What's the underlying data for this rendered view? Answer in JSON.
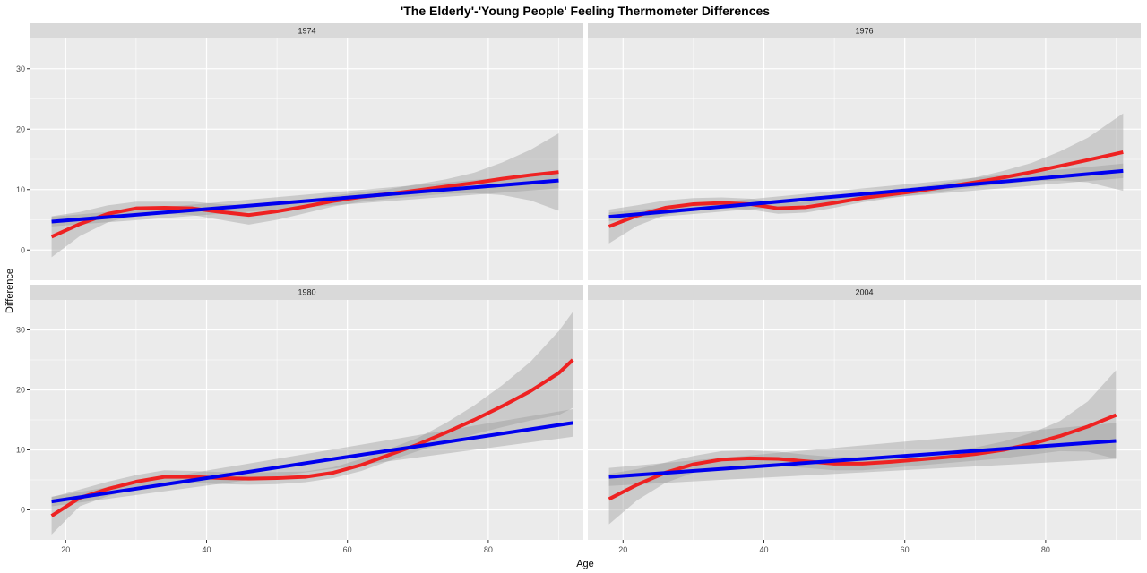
{
  "chart_data": {
    "type": "line",
    "title": "'The Elderly'-'Young People' Feeling Thermometer Differences",
    "xlabel": "Age",
    "ylabel": "Difference",
    "xlim": [
      15,
      93.5
    ],
    "ylim": [
      -5,
      35
    ],
    "xticks": [
      20,
      40,
      60,
      80
    ],
    "yticks": [
      0,
      10,
      20,
      30
    ],
    "grid": true,
    "colors": {
      "panel_bg": "#ebebeb",
      "strip_bg": "#d9d9d9",
      "grid": "#ffffff",
      "ribbon": "#999999",
      "smooth_line": "#ee2222",
      "linear_line": "#0000ee"
    },
    "panels": [
      {
        "label": "1974",
        "series": [
          {
            "x": [
              18,
              22,
              26,
              30,
              34,
              38,
              42,
              46,
              50,
              54,
              58,
              62,
              66,
              70,
              74,
              78,
              82,
              86,
              90
            ],
            "y": [
              2.2,
              4.3,
              6.0,
              6.9,
              7.0,
              6.9,
              6.3,
              5.8,
              6.4,
              7.2,
              8.1,
              8.8,
              9.3,
              9.9,
              10.5,
              11.1,
              11.8,
              12.4,
              12.9
            ],
            "lower": [
              -1.2,
              2.3,
              4.6,
              5.8,
              6.0,
              5.8,
              5.0,
              4.2,
              5.0,
              6.1,
              7.2,
              8.0,
              8.5,
              8.9,
              9.3,
              9.4,
              9.1,
              8.2,
              6.5
            ],
            "upper": [
              5.6,
              6.3,
              7.4,
              8.0,
              8.0,
              8.0,
              7.6,
              7.4,
              7.8,
              8.3,
              9.0,
              9.6,
              10.1,
              10.9,
              11.7,
              12.8,
              14.5,
              16.6,
              19.3
            ]
          },
          {
            "x": [
              18,
              90
            ],
            "y": [
              4.7,
              11.5
            ],
            "lower": [
              3.9,
              10.2
            ],
            "upper": [
              5.5,
              12.8
            ]
          }
        ]
      },
      {
        "label": "1976",
        "series": [
          {
            "x": [
              18,
              22,
              26,
              30,
              34,
              38,
              42,
              46,
              50,
              54,
              58,
              62,
              66,
              70,
              74,
              78,
              82,
              86,
              91
            ],
            "y": [
              3.9,
              5.7,
              7.0,
              7.6,
              7.8,
              7.6,
              6.9,
              7.1,
              7.8,
              8.6,
              9.2,
              9.8,
              10.5,
              11.2,
              12.0,
              12.9,
              13.9,
              14.9,
              16.2
            ],
            "lower": [
              1.1,
              4.0,
              5.8,
              6.6,
              6.9,
              6.7,
              6.0,
              6.2,
              7.0,
              7.9,
              8.6,
              9.2,
              9.8,
              10.4,
              10.9,
              11.4,
              11.5,
              11.2,
              9.8
            ],
            "upper": [
              6.7,
              7.4,
              8.2,
              8.6,
              8.7,
              8.5,
              7.8,
              8.0,
              8.6,
              9.3,
              9.8,
              10.4,
              11.2,
              12.0,
              13.1,
              14.4,
              16.3,
              18.6,
              22.6
            ]
          },
          {
            "x": [
              18,
              91
            ],
            "y": [
              5.5,
              13.1
            ],
            "lower": [
              4.8,
              11.9
            ],
            "upper": [
              6.2,
              14.3
            ]
          }
        ]
      },
      {
        "label": "1980",
        "series": [
          {
            "x": [
              18,
              22,
              26,
              30,
              34,
              38,
              42,
              46,
              50,
              54,
              58,
              62,
              66,
              70,
              74,
              78,
              82,
              86,
              90,
              92
            ],
            "y": [
              -1.0,
              2.0,
              3.5,
              4.7,
              5.5,
              5.5,
              5.3,
              5.2,
              5.3,
              5.5,
              6.2,
              7.5,
              9.2,
              10.9,
              12.9,
              15.0,
              17.3,
              19.8,
              22.8,
              25.0
            ],
            "lower": [
              -4.1,
              0.6,
              2.3,
              3.6,
              4.4,
              4.5,
              4.3,
              4.2,
              4.3,
              4.6,
              5.3,
              6.5,
              8.2,
              9.8,
              11.3,
              12.6,
              13.8,
              14.9,
              15.8,
              17.0
            ],
            "upper": [
              2.1,
              3.4,
              4.7,
              5.8,
              6.6,
              6.5,
              6.3,
              6.2,
              6.3,
              6.4,
              7.1,
              8.5,
              10.2,
              12.0,
              14.5,
              17.4,
              20.8,
              24.7,
              29.8,
              33.0
            ]
          },
          {
            "x": [
              18,
              92
            ],
            "y": [
              1.4,
              14.5
            ],
            "lower": [
              0.6,
              12.2
            ],
            "upper": [
              2.2,
              16.8
            ]
          }
        ]
      },
      {
        "label": "2004",
        "series": [
          {
            "x": [
              18,
              22,
              26,
              30,
              34,
              38,
              42,
              46,
              50,
              54,
              58,
              62,
              66,
              70,
              74,
              78,
              82,
              86,
              90
            ],
            "y": [
              1.8,
              4.2,
              6.2,
              7.6,
              8.4,
              8.6,
              8.5,
              8.1,
              7.7,
              7.7,
              8.0,
              8.4,
              8.8,
              9.3,
              10.0,
              11.0,
              12.3,
              13.9,
              15.8
            ],
            "lower": [
              -2.4,
              1.6,
              4.5,
              6.2,
              7.0,
              7.3,
              7.3,
              7.0,
              6.6,
              6.6,
              7.0,
              7.4,
              7.8,
              8.2,
              8.6,
              9.2,
              9.8,
              9.7,
              8.5
            ],
            "upper": [
              6.0,
              6.8,
              7.9,
              9.0,
              9.8,
              9.9,
              9.7,
              9.2,
              8.8,
              8.8,
              9.0,
              9.4,
              9.8,
              10.4,
              11.4,
              12.8,
              14.8,
              18.1,
              23.3
            ]
          },
          {
            "x": [
              18,
              90
            ],
            "y": [
              5.5,
              11.5
            ],
            "lower": [
              4.0,
              8.5
            ],
            "upper": [
              7.0,
              14.5
            ]
          }
        ]
      }
    ]
  }
}
